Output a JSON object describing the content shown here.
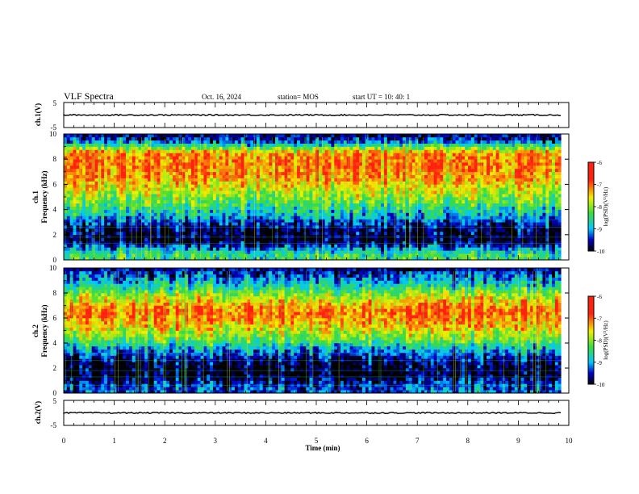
{
  "header": {
    "title": "VLF Spectra",
    "date": "Oct. 16, 2024",
    "station": "station= MOS",
    "start_ut": "start  UT  =   10: 40: 1"
  },
  "colors": {
    "black": "#000000",
    "blue": "#0000c8",
    "cyan": "#00c8ff",
    "green": "#3cdc3c",
    "yellow": "#f0f000",
    "red": "#ff2010"
  },
  "chart_data": [
    {
      "type": "line",
      "id": "ch1-waveform",
      "ylabel": "ch.1(V)",
      "ylim": [
        -5,
        5
      ],
      "yticks": [
        "5",
        "-5"
      ],
      "xlim": [
        0,
        10
      ],
      "value": 0
    },
    {
      "type": "heatmap",
      "id": "ch1-spectrogram",
      "ylabel": "ch.1\nFrequency (kHz)",
      "ylim": [
        0,
        10
      ],
      "yticks": [
        "0",
        "2",
        "4",
        "6",
        "8",
        "10"
      ],
      "xlim": [
        0,
        10
      ],
      "colorbar": {
        "label": "log(PSD)(V²/Hz)",
        "ticks": [
          "-6",
          "-7",
          "-8",
          "-9",
          "-10"
        ],
        "range": [
          -10,
          -6
        ]
      },
      "intensity_profile": [
        {
          "freq_khz": 0.5,
          "level": -8.5
        },
        {
          "freq_khz": 1.5,
          "level": -10
        },
        {
          "freq_khz": 2.5,
          "level": -9.8
        },
        {
          "freq_khz": 3.5,
          "level": -9.0
        },
        {
          "freq_khz": 4.5,
          "level": -8.3
        },
        {
          "freq_khz": 5.5,
          "level": -7.8
        },
        {
          "freq_khz": 6.5,
          "level": -7.3
        },
        {
          "freq_khz": 7.5,
          "level": -7.1
        },
        {
          "freq_khz": 8.5,
          "level": -7.2
        },
        {
          "freq_khz": 9.5,
          "level": -9.5
        }
      ]
    },
    {
      "type": "heatmap",
      "id": "ch2-spectrogram",
      "ylabel": "ch.2\nFrequency (kHz)",
      "ylim": [
        0,
        10
      ],
      "yticks": [
        "0",
        "2",
        "4",
        "6",
        "8",
        "10"
      ],
      "xlim": [
        0,
        10
      ],
      "colorbar": {
        "label": "log(PSD)(V²/Hz)",
        "ticks": [
          "-6",
          "-7",
          "-8",
          "-9",
          "-10"
        ],
        "range": [
          -10,
          -6
        ]
      },
      "intensity_profile": [
        {
          "freq_khz": 0.5,
          "level": -9.3
        },
        {
          "freq_khz": 1.5,
          "level": -10
        },
        {
          "freq_khz": 2.5,
          "level": -9.8
        },
        {
          "freq_khz": 3.5,
          "level": -9.0
        },
        {
          "freq_khz": 4.5,
          "level": -8.0
        },
        {
          "freq_khz": 5.5,
          "level": -7.4
        },
        {
          "freq_khz": 6.5,
          "level": -7.0
        },
        {
          "freq_khz": 7.5,
          "level": -7.6
        },
        {
          "freq_khz": 8.5,
          "level": -8.6
        },
        {
          "freq_khz": 9.5,
          "level": -9.4
        }
      ]
    },
    {
      "type": "line",
      "id": "ch2-waveform",
      "ylabel": "ch.2(V)",
      "ylim": [
        -5,
        5
      ],
      "yticks": [
        "5",
        "-5"
      ],
      "xlim": [
        0,
        10
      ],
      "value": 0
    }
  ],
  "xaxis": {
    "label": "Time  (min)",
    "ticks": [
      "0",
      "1",
      "2",
      "3",
      "4",
      "5",
      "6",
      "7",
      "8",
      "9",
      "10"
    ],
    "data_end": 9.85
  }
}
